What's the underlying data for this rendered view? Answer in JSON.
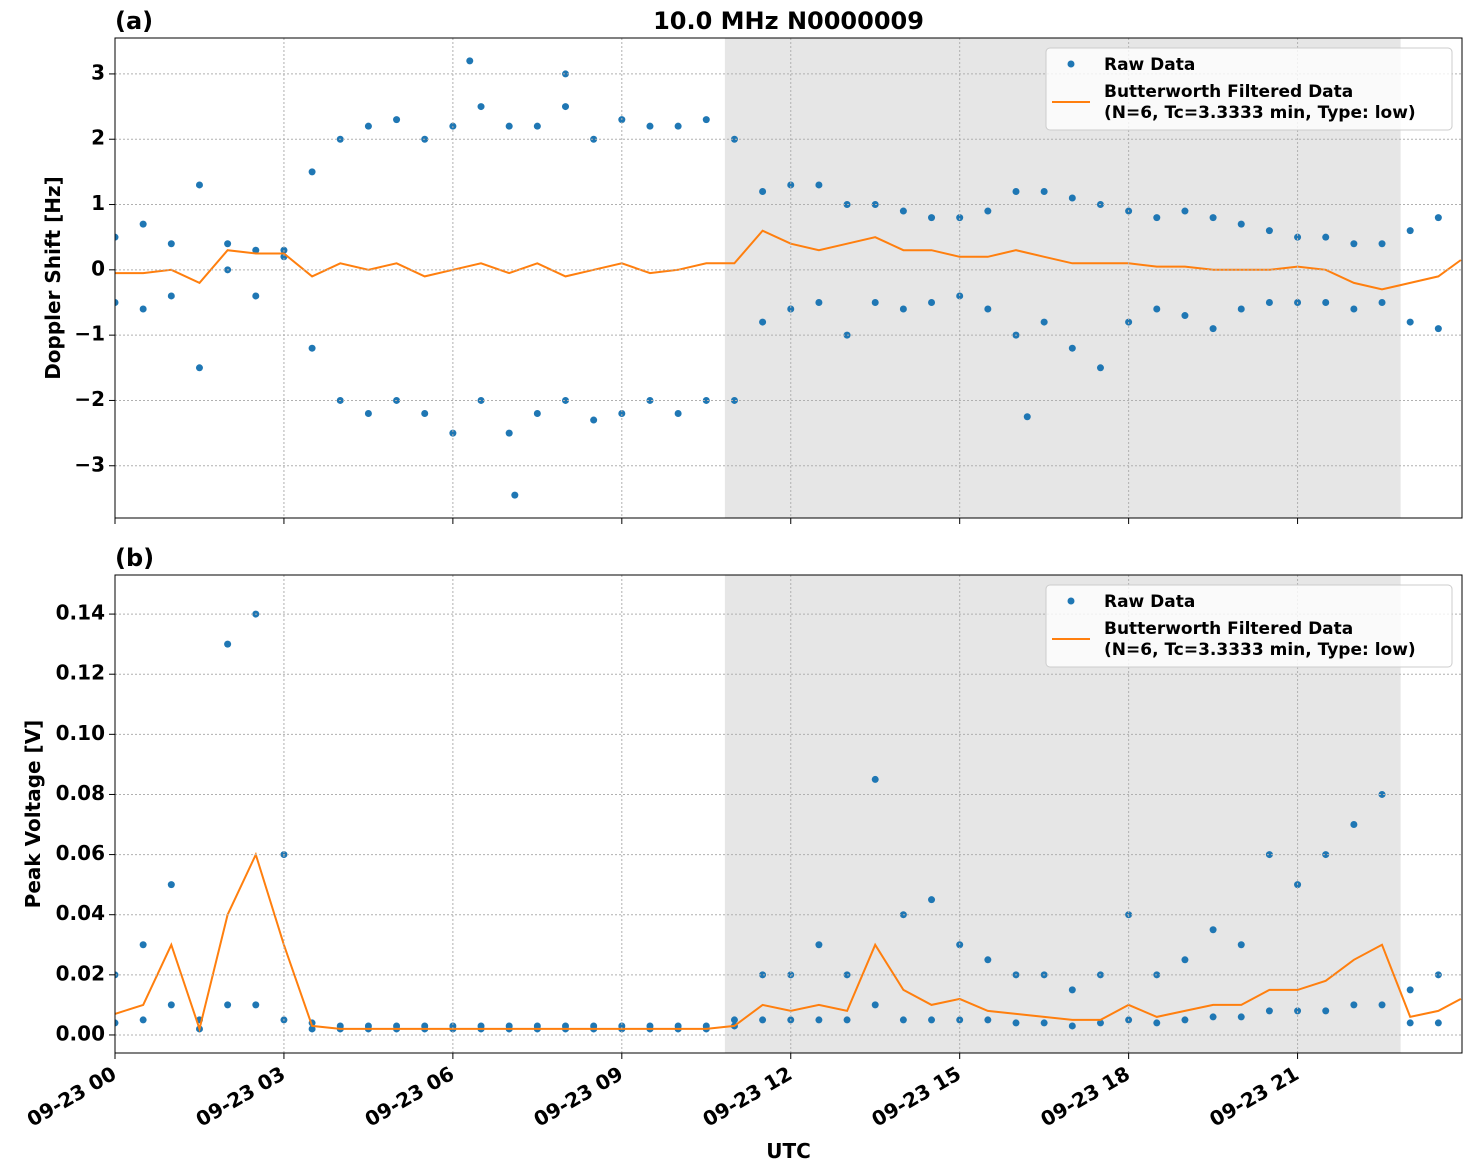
{
  "chart_data": [
    {
      "type": "scatter",
      "title": "10.0 MHz N0000009",
      "panel_label": "(a)",
      "ylabel": "Doppler Shift [Hz]",
      "xlim": [
        0,
        23.92
      ],
      "ylim": [
        -3.8,
        3.55
      ],
      "xticks": [
        0,
        3,
        6,
        9,
        12,
        15,
        18,
        21
      ],
      "xticklabels": false,
      "yticks": [
        {
          "value": -3,
          "label": "−3"
        },
        {
          "value": -2,
          "label": "−2"
        },
        {
          "value": -1,
          "label": "−1"
        },
        0,
        1,
        2,
        3
      ],
      "grid": true,
      "shade": [
        10.83,
        22.83
      ],
      "legend": "upper right",
      "series": [
        {
          "name": "Raw Data",
          "color": "#1f77b4",
          "marker": "dot",
          "x": [
            0,
            0,
            0.5,
            0.5,
            1,
            1,
            1.5,
            1.5,
            2,
            2,
            2.5,
            2.5,
            3,
            3,
            3.5,
            3.5,
            4,
            4,
            4.5,
            4.5,
            5,
            5,
            5.5,
            5.5,
            6,
            6,
            6.5,
            6.5,
            7,
            7,
            7.5,
            7.5,
            8,
            8,
            8.5,
            8.5,
            9,
            9,
            9.5,
            9.5,
            10,
            10,
            10.5,
            10.5,
            11,
            11,
            11.5,
            11.5,
            12,
            12,
            12.5,
            12.5,
            13,
            13,
            13.5,
            13.5,
            14,
            14,
            14.5,
            14.5,
            15,
            15,
            15.5,
            15.5,
            16,
            16,
            16.5,
            16.5,
            17,
            17,
            17.5,
            17.5,
            18,
            18,
            18.5,
            18.5,
            19,
            19,
            19.5,
            19.5,
            20,
            20,
            20.5,
            20.5,
            21,
            21,
            21.5,
            21.5,
            22,
            22,
            22.5,
            22.5,
            23,
            23,
            23.5,
            23.5,
            6.3,
            8.0,
            7.1,
            16.2
          ],
          "values": [
            0.5,
            -0.5,
            0.7,
            -0.6,
            0.4,
            -0.4,
            1.3,
            -1.5,
            0.4,
            0.0,
            0.3,
            -0.4,
            0.3,
            0.2,
            1.5,
            -1.2,
            2.0,
            -2.0,
            2.2,
            -2.2,
            2.3,
            -2.0,
            2.0,
            -2.2,
            2.2,
            -2.5,
            2.5,
            -2.0,
            2.2,
            -2.5,
            2.2,
            -2.2,
            2.5,
            -2.0,
            2.0,
            -2.3,
            2.3,
            -2.2,
            2.2,
            -2.0,
            2.2,
            -2.2,
            2.3,
            -2.0,
            2.0,
            -2.0,
            1.2,
            -0.8,
            1.3,
            -0.6,
            1.3,
            -0.5,
            1.0,
            -1.0,
            1.0,
            -0.5,
            0.9,
            -0.6,
            0.8,
            -0.5,
            0.8,
            -0.4,
            0.9,
            -0.6,
            1.2,
            -1.0,
            1.2,
            -0.8,
            1.1,
            -1.2,
            1.0,
            -1.5,
            0.9,
            -0.8,
            0.8,
            -0.6,
            0.9,
            -0.7,
            0.8,
            -0.9,
            0.7,
            -0.6,
            0.6,
            -0.5,
            0.5,
            -0.5,
            0.5,
            -0.5,
            0.4,
            -0.6,
            0.4,
            -0.5,
            0.6,
            -0.8,
            0.8,
            -0.9,
            3.2,
            3.0,
            -3.45,
            -2.25
          ]
        },
        {
          "name": "Butterworth Filtered Data\n(N=6, Tc=3.3333 min, Type: low)",
          "color": "#ff7f0e",
          "marker": "line",
          "x": [
            0,
            0.5,
            1,
            1.5,
            2,
            2.5,
            3,
            3.5,
            4,
            4.5,
            5,
            5.5,
            6,
            6.5,
            7,
            7.5,
            8,
            8.5,
            9,
            9.5,
            10,
            10.5,
            11,
            11.5,
            12,
            12.5,
            13,
            13.5,
            14,
            14.5,
            15,
            15.5,
            16,
            16.5,
            17,
            17.5,
            18,
            18.5,
            19,
            19.5,
            20,
            20.5,
            21,
            21.5,
            22,
            22.5,
            23,
            23.5,
            23.9
          ],
          "values": [
            -0.05,
            -0.05,
            0.0,
            -0.2,
            0.3,
            0.25,
            0.25,
            -0.1,
            0.1,
            0.0,
            0.1,
            -0.1,
            0.0,
            0.1,
            -0.05,
            0.1,
            -0.1,
            0.0,
            0.1,
            -0.05,
            0.0,
            0.1,
            0.1,
            0.6,
            0.4,
            0.3,
            0.4,
            0.5,
            0.3,
            0.3,
            0.2,
            0.2,
            0.3,
            0.2,
            0.1,
            0.1,
            0.1,
            0.05,
            0.05,
            0.0,
            0.0,
            0.0,
            0.05,
            0.0,
            -0.2,
            -0.3,
            -0.2,
            -0.1,
            0.15
          ]
        }
      ]
    },
    {
      "type": "scatter",
      "panel_label": "(b)",
      "ylabel": "Peak Voltage [V]",
      "xlabel": "UTC",
      "xlim": [
        0,
        23.92
      ],
      "ylim": [
        -0.006,
        0.153
      ],
      "xticks": [
        {
          "value": 0,
          "label": "09-23 00"
        },
        {
          "value": 3,
          "label": "09-23 03"
        },
        {
          "value": 6,
          "label": "09-23 06"
        },
        {
          "value": 9,
          "label": "09-23 09"
        },
        {
          "value": 12,
          "label": "09-23 12"
        },
        {
          "value": 15,
          "label": "09-23 15"
        },
        {
          "value": 18,
          "label": "09-23 18"
        },
        {
          "value": 21,
          "label": "09-23 21"
        }
      ],
      "xticklabels": true,
      "yticks": [
        {
          "value": 0,
          "label": "0.00"
        },
        {
          "value": 0.02,
          "label": "0.02"
        },
        {
          "value": 0.04,
          "label": "0.04"
        },
        {
          "value": 0.06,
          "label": "0.06"
        },
        {
          "value": 0.08,
          "label": "0.08"
        },
        {
          "value": 0.1,
          "label": "0.10"
        },
        {
          "value": 0.12,
          "label": "0.12"
        },
        {
          "value": 0.14,
          "label": "0.14"
        }
      ],
      "grid": true,
      "shade": [
        10.83,
        22.83
      ],
      "legend": "upper right",
      "series": [
        {
          "name": "Raw Data",
          "color": "#1f77b4",
          "marker": "dot",
          "x": [
            0,
            0,
            0.5,
            0.5,
            1,
            1,
            1.5,
            1.5,
            2,
            2,
            2.5,
            2.5,
            3,
            3,
            3.5,
            3.5,
            4,
            4,
            4.5,
            4.5,
            5,
            5,
            5.5,
            5.5,
            6,
            6,
            6.5,
            6.5,
            7,
            7,
            7.5,
            7.5,
            8,
            8,
            8.5,
            8.5,
            9,
            9,
            9.5,
            9.5,
            10,
            10,
            10.5,
            10.5,
            11,
            11,
            11.5,
            11.5,
            12,
            12,
            12.5,
            12.5,
            13,
            13,
            13.5,
            13.5,
            14,
            14,
            14.5,
            14.5,
            15,
            15,
            15.5,
            15.5,
            16,
            16,
            16.5,
            16.5,
            17,
            17,
            17.5,
            17.5,
            18,
            18,
            18.5,
            18.5,
            19,
            19,
            19.5,
            19.5,
            20,
            20,
            20.5,
            20.5,
            21,
            21,
            21.5,
            21.5,
            22,
            22,
            22.5,
            22.5,
            23,
            23,
            23.5,
            23.5
          ],
          "values": [
            0.02,
            0.004,
            0.03,
            0.005,
            0.05,
            0.01,
            0.005,
            0.002,
            0.13,
            0.01,
            0.14,
            0.01,
            0.06,
            0.005,
            0.004,
            0.002,
            0.003,
            0.002,
            0.003,
            0.002,
            0.003,
            0.002,
            0.003,
            0.002,
            0.003,
            0.002,
            0.003,
            0.002,
            0.003,
            0.002,
            0.003,
            0.002,
            0.003,
            0.002,
            0.003,
            0.002,
            0.003,
            0.002,
            0.003,
            0.002,
            0.003,
            0.002,
            0.003,
            0.002,
            0.005,
            0.003,
            0.02,
            0.005,
            0.02,
            0.005,
            0.03,
            0.005,
            0.02,
            0.005,
            0.085,
            0.01,
            0.04,
            0.005,
            0.045,
            0.005,
            0.03,
            0.005,
            0.025,
            0.005,
            0.02,
            0.004,
            0.02,
            0.004,
            0.015,
            0.003,
            0.02,
            0.004,
            0.04,
            0.005,
            0.02,
            0.004,
            0.025,
            0.005,
            0.035,
            0.006,
            0.03,
            0.006,
            0.06,
            0.008,
            0.05,
            0.008,
            0.06,
            0.008,
            0.07,
            0.01,
            0.08,
            0.01,
            0.015,
            0.004,
            0.02,
            0.004
          ]
        },
        {
          "name": "Butterworth Filtered Data\n(N=6, Tc=3.3333 min, Type: low)",
          "color": "#ff7f0e",
          "marker": "line",
          "x": [
            0,
            0.5,
            1,
            1.5,
            2,
            2.5,
            3,
            3.5,
            4,
            4.5,
            5,
            5.5,
            6,
            6.5,
            7,
            7.5,
            8,
            8.5,
            9,
            9.5,
            10,
            10.5,
            11,
            11.5,
            12,
            12.5,
            13,
            13.5,
            14,
            14.5,
            15,
            15.5,
            16,
            16.5,
            17,
            17.5,
            18,
            18.5,
            19,
            19.5,
            20,
            20.5,
            21,
            21.5,
            22,
            22.5,
            23,
            23.5,
            23.9
          ],
          "values": [
            0.007,
            0.01,
            0.03,
            0.002,
            0.04,
            0.06,
            0.03,
            0.003,
            0.002,
            0.002,
            0.002,
            0.002,
            0.002,
            0.002,
            0.002,
            0.002,
            0.002,
            0.002,
            0.002,
            0.002,
            0.002,
            0.002,
            0.003,
            0.01,
            0.008,
            0.01,
            0.008,
            0.03,
            0.015,
            0.01,
            0.012,
            0.008,
            0.007,
            0.006,
            0.005,
            0.005,
            0.01,
            0.006,
            0.008,
            0.01,
            0.01,
            0.015,
            0.015,
            0.018,
            0.025,
            0.03,
            0.006,
            0.008,
            0.012
          ]
        }
      ]
    }
  ]
}
